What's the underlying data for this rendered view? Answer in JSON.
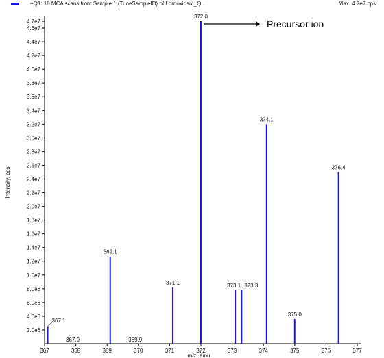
{
  "header": {
    "title": "+Q1: 10 MCA scans from Sample 1 (TuneSampleID) of Lornoxicam_Q...",
    "max": "Max. 4.7e7 cps"
  },
  "colors": {
    "peak": "#1a1ad6",
    "axis": "#000000"
  },
  "chart_data": {
    "type": "bar",
    "title": "+Q1: 10 MCA scans from Sample 1 (TuneSampleID) of Lornoxicam_Q...",
    "xlabel": "m/z, amu",
    "ylabel": "Intensity, cps",
    "xlim": [
      367,
      377
    ],
    "ylim": [
      0,
      47000000
    ],
    "grid": false,
    "x_ticks": [
      "367",
      "368",
      "369",
      "370",
      "371",
      "372",
      "373",
      "374",
      "375",
      "376",
      "377"
    ],
    "y_ticks": [
      "2.0e6",
      "4.0e6",
      "6.0e6",
      "8.0e6",
      "1.0e7",
      "1.2e7",
      "1.4e7",
      "1.6e7",
      "1.8e7",
      "2.0e7",
      "2.2e7",
      "2.4e7",
      "2.6e7",
      "2.8e7",
      "3.0e7",
      "3.2e7",
      "3.4e7",
      "3.6e7",
      "3.8e7",
      "4.0e7",
      "4.2e7",
      "4.4e7",
      "4.6e7",
      "4.7e7"
    ],
    "peaks": [
      {
        "mz": 367.1,
        "intensity": 2500000,
        "label": "367.1"
      },
      {
        "mz": 367.9,
        "intensity": 0,
        "label": "367.9"
      },
      {
        "mz": 369.1,
        "intensity": 12700000,
        "label": "369.1"
      },
      {
        "mz": 369.9,
        "intensity": 0,
        "label": "369.9"
      },
      {
        "mz": 371.1,
        "intensity": 8200000,
        "label": "371.1"
      },
      {
        "mz": 372.0,
        "intensity": 47000000,
        "label": "372.0"
      },
      {
        "mz": 373.1,
        "intensity": 7800000,
        "label": "373.1"
      },
      {
        "mz": 373.3,
        "intensity": 7800000,
        "label": "373.3"
      },
      {
        "mz": 374.1,
        "intensity": 32000000,
        "label": "374.1"
      },
      {
        "mz": 375.0,
        "intensity": 3600000,
        "label": "375.0"
      },
      {
        "mz": 376.4,
        "intensity": 25000000,
        "label": "376.4"
      }
    ],
    "annotations": [
      {
        "text": "Precursor ion",
        "points_to": "372.0"
      }
    ]
  }
}
